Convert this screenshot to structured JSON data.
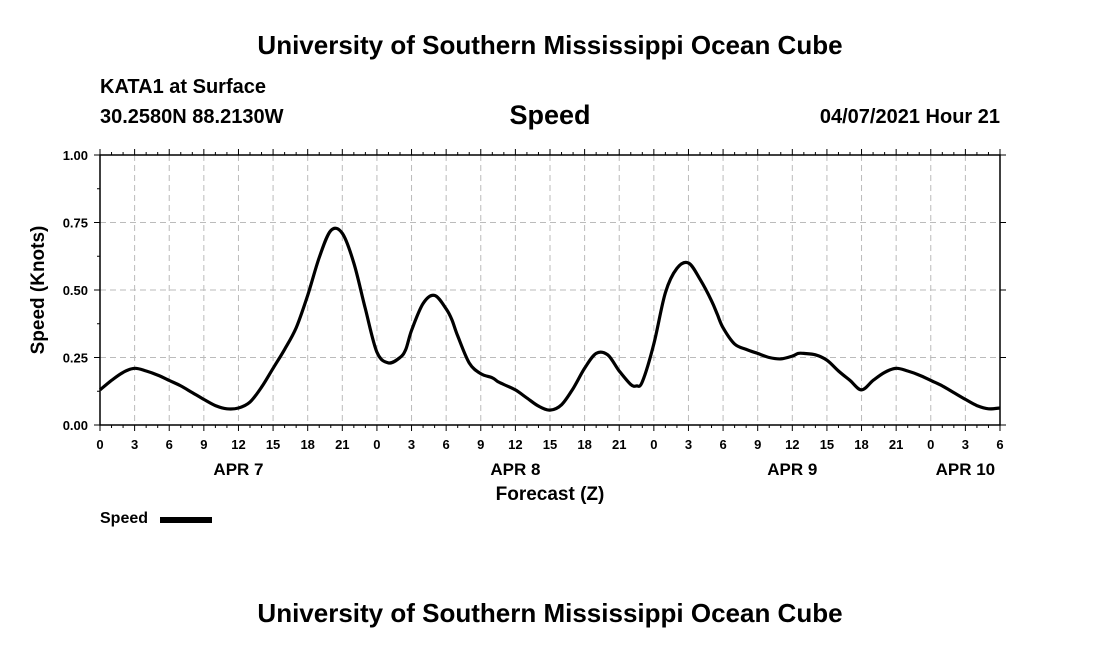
{
  "header": {
    "title": "University of Southern Mississippi Ocean Cube",
    "station": "KATA1 at Surface",
    "coords": "30.2580N  88.2130W",
    "variable": "Speed",
    "datetime": "04/07/2021 Hour 21"
  },
  "footer": {
    "title": "University of Southern Mississippi Ocean Cube"
  },
  "legend": {
    "label": "Speed"
  },
  "chart_data": {
    "type": "line",
    "title": "Speed",
    "xlabel": "Forecast (Z)",
    "ylabel": "Speed (Knots)",
    "xlim": [
      0,
      78
    ],
    "ylim": [
      0,
      1.0
    ],
    "y_ticks": [
      "0.00",
      "0.25",
      "0.50",
      "0.75",
      "1.00"
    ],
    "x_tick_hours": [
      0,
      3,
      6,
      9,
      12,
      15,
      18,
      21,
      24,
      27,
      30,
      33,
      36,
      39,
      42,
      45,
      48,
      51,
      54,
      57,
      60,
      63,
      66,
      69,
      72,
      75,
      78
    ],
    "x_tick_labels": [
      "0",
      "3",
      "6",
      "9",
      "12",
      "15",
      "18",
      "21",
      "0",
      "3",
      "6",
      "9",
      "12",
      "15",
      "18",
      "21",
      "0",
      "3",
      "6",
      "9",
      "12",
      "15",
      "18",
      "21",
      "0",
      "3",
      "6"
    ],
    "day_labels": [
      {
        "label": "APR 7",
        "hour": 12
      },
      {
        "label": "APR 8",
        "hour": 36
      },
      {
        "label": "APR 9",
        "hour": 60
      },
      {
        "label": "APR 10",
        "hour": 75
      }
    ],
    "grid": true,
    "series": [
      {
        "name": "Speed",
        "color": "#000000",
        "x": [
          0,
          1,
          2,
          3,
          4,
          5,
          6,
          7,
          8,
          9,
          10,
          11,
          12,
          13,
          14,
          15,
          16,
          17,
          18,
          19,
          20,
          21,
          22,
          23,
          24,
          25,
          26,
          26.5,
          27,
          28,
          29,
          30,
          30.5,
          31,
          32,
          33,
          34,
          34.5,
          35,
          36,
          37,
          38,
          39,
          40,
          41,
          42,
          43,
          44,
          45,
          46,
          46.5,
          47,
          48,
          49,
          50,
          51,
          52,
          53,
          53.5,
          54,
          55,
          56,
          57,
          58,
          59,
          60,
          60.5,
          61,
          62,
          63,
          64,
          65,
          66,
          67,
          68,
          69,
          70,
          71,
          72,
          73,
          74,
          75,
          76,
          77,
          78
        ],
        "values": [
          0.13,
          0.165,
          0.195,
          0.21,
          0.2,
          0.185,
          0.165,
          0.145,
          0.12,
          0.095,
          0.072,
          0.06,
          0.063,
          0.085,
          0.14,
          0.21,
          0.28,
          0.36,
          0.48,
          0.62,
          0.72,
          0.71,
          0.6,
          0.43,
          0.27,
          0.23,
          0.25,
          0.28,
          0.35,
          0.45,
          0.48,
          0.43,
          0.39,
          0.33,
          0.23,
          0.19,
          0.175,
          0.16,
          0.15,
          0.13,
          0.1,
          0.07,
          0.055,
          0.075,
          0.135,
          0.21,
          0.265,
          0.26,
          0.2,
          0.15,
          0.145,
          0.16,
          0.3,
          0.49,
          0.58,
          0.6,
          0.54,
          0.46,
          0.41,
          0.36,
          0.3,
          0.28,
          0.265,
          0.25,
          0.245,
          0.255,
          0.265,
          0.265,
          0.26,
          0.24,
          0.2,
          0.165,
          0.13,
          0.165,
          0.195,
          0.21,
          0.2,
          0.185,
          0.165,
          0.145,
          0.12,
          0.095,
          0.072,
          0.06,
          0.063
        ]
      }
    ]
  }
}
